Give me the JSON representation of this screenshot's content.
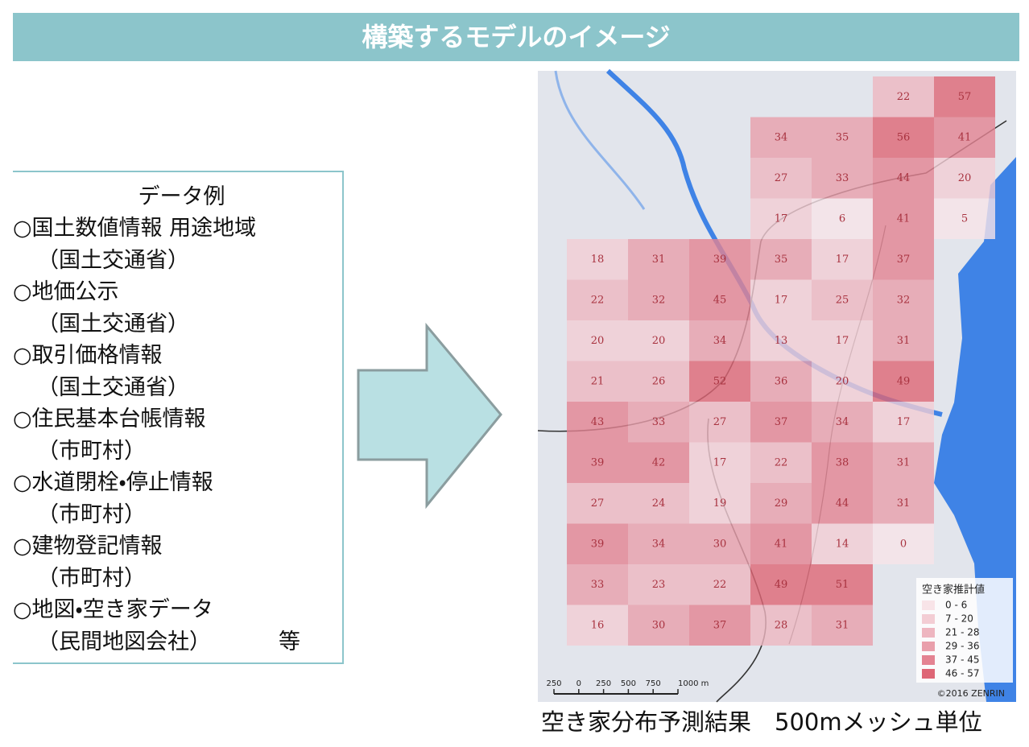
{
  "header": {
    "title": "構築するモデルのイメージ"
  },
  "data_examples": {
    "heading": "データ例",
    "items": [
      {
        "name": "○国土数値情報 用途地域",
        "source": "（国土交通省）"
      },
      {
        "name": "○地価公示",
        "source": "（国土交通省）"
      },
      {
        "name": "○取引価格情報",
        "source": "（国土交通省）"
      },
      {
        "name": "○住民基本台帳情報",
        "source": "（市町村）"
      },
      {
        "name": "○水道閉栓・停止情報",
        "source": "（市町村）"
      },
      {
        "name": "○建物登記情報",
        "source": "（市町村）"
      },
      {
        "name": "○地図・空き家データ",
        "source": "（民間地図会社）"
      }
    ],
    "etc": "等"
  },
  "map": {
    "grid": [
      [
        null,
        null,
        null,
        null,
        null,
        22,
        57
      ],
      [
        null,
        null,
        null,
        34,
        35,
        56,
        41
      ],
      [
        null,
        null,
        null,
        27,
        33,
        44,
        20
      ],
      [
        null,
        null,
        null,
        17,
        6,
        41,
        5
      ],
      [
        18,
        31,
        39,
        35,
        17,
        37,
        null
      ],
      [
        22,
        32,
        45,
        17,
        25,
        32,
        null
      ],
      [
        20,
        20,
        34,
        13,
        17,
        31,
        null
      ],
      [
        21,
        26,
        52,
        36,
        20,
        49,
        null
      ],
      [
        43,
        33,
        27,
        37,
        34,
        17,
        null
      ],
      [
        39,
        42,
        17,
        22,
        38,
        31,
        null
      ],
      [
        27,
        24,
        19,
        29,
        44,
        31,
        null
      ],
      [
        39,
        34,
        30,
        41,
        14,
        0,
        null
      ],
      [
        33,
        23,
        22,
        49,
        51,
        null,
        null
      ],
      [
        16,
        30,
        37,
        28,
        31,
        null,
        null
      ]
    ],
    "legend": {
      "title": "空き家推計値",
      "classes": [
        {
          "label": "0 - 6",
          "min": 0,
          "max": 6,
          "color": "#f8e4e8"
        },
        {
          "label": "7 - 20",
          "min": 7,
          "max": 20,
          "color": "#f3cdd4"
        },
        {
          "label": "21 - 28",
          "min": 21,
          "max": 28,
          "color": "#eeb6c0"
        },
        {
          "label": "29 - 36",
          "min": 29,
          "max": 36,
          "color": "#e99fab"
        },
        {
          "label": "37 - 45",
          "min": 37,
          "max": 45,
          "color": "#e48392"
        },
        {
          "label": "46 - 57",
          "min": 46,
          "max": 57,
          "color": "#de6676"
        }
      ]
    },
    "scale_bar": [
      "250",
      "0",
      "250",
      "500",
      "750",
      "1000 m"
    ],
    "copyright": "©2016 ZENRIN"
  },
  "caption": "空き家分布予測結果　500mメッシュ単位"
}
